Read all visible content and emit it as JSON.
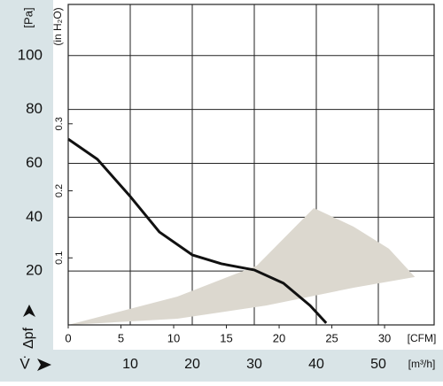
{
  "chart_data": {
    "type": "line",
    "y_label": "[Pa]",
    "y2_label": "(in H₂O)",
    "y_symbol": "Δpf",
    "x_label": "[m³/h]",
    "x2_label": "[CFM]",
    "x_symbol": "V̇",
    "xlim": [
      0,
      59
    ],
    "xticks": [
      10,
      20,
      30,
      40,
      50
    ],
    "x2lim": [
      0,
      34.7
    ],
    "x2ticks": [
      0,
      5,
      10,
      15,
      20,
      25,
      30
    ],
    "ylim": [
      0,
      119
    ],
    "yticks": [
      20,
      40,
      60,
      80,
      100
    ],
    "y2lim": [
      0,
      0.478
    ],
    "y2ticks": [
      0.1,
      0.2,
      0.3
    ],
    "grid": true,
    "series": [
      {
        "type": "line",
        "color": "#111111",
        "x": [
          0,
          4.7,
          10,
          14.7,
          20,
          24.7,
          30,
          34.7,
          39,
          41.6
        ],
        "values": [
          69,
          61.5,
          47.7,
          34.5,
          26,
          22.7,
          20.4,
          15.5,
          7.2,
          0.7
        ]
      },
      {
        "type": "area",
        "color": "#dcd8cf",
        "x": [
          0,
          17.6,
          30.4,
          39.6,
          46,
          51.7,
          55.9,
          46,
          31.9,
          17.6,
          0
        ],
        "values": [
          0,
          10.5,
          22,
          43.4,
          36.5,
          28.3,
          17.8,
          13.8,
          7.2,
          2.3,
          0
        ]
      }
    ]
  }
}
